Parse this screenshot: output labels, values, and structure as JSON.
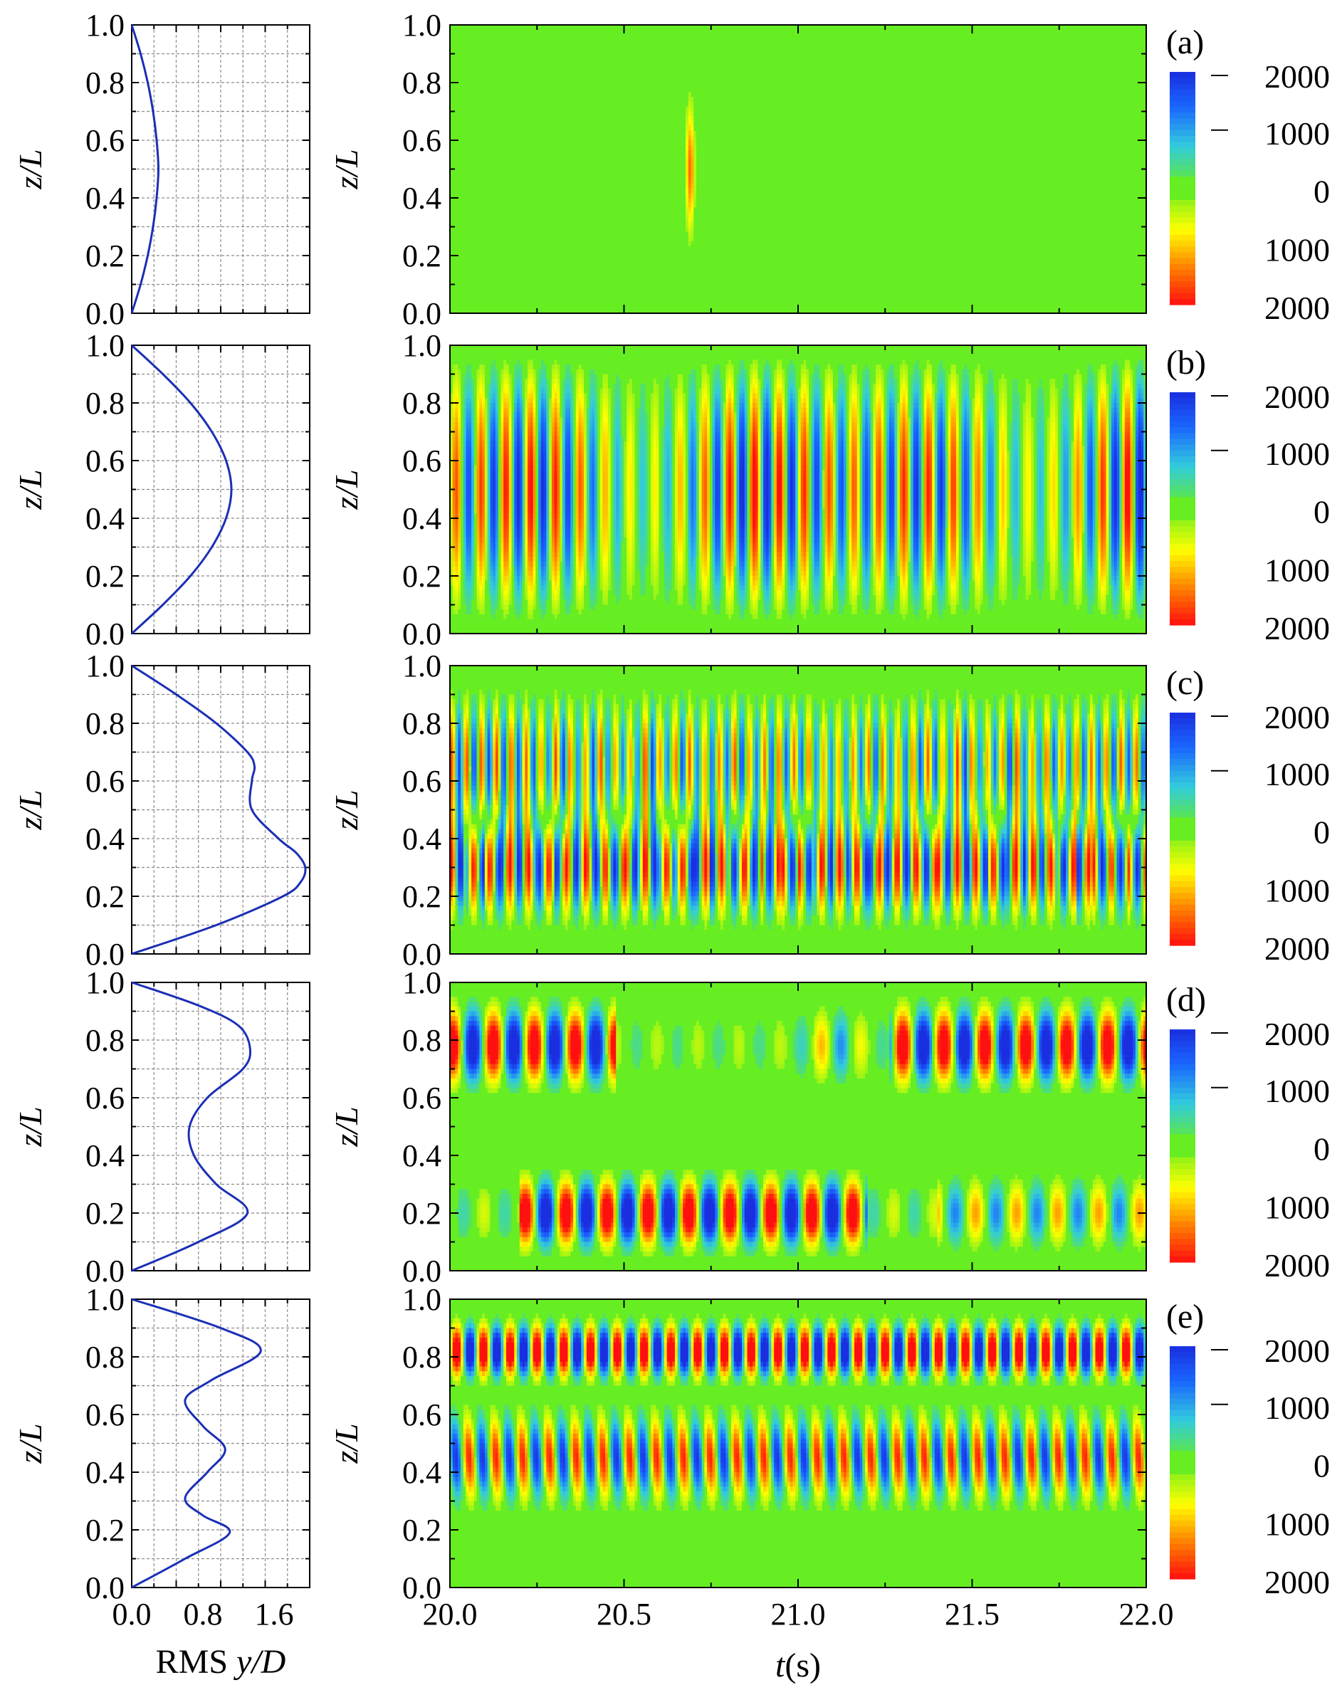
{
  "figure": {
    "rms_xlabel_main": "RMS ",
    "rms_xlabel_var": "y/D",
    "t_xlabel_var": "t",
    "t_xlabel_unit": "(s)",
    "ylabel_var": "z/L",
    "colorbar_ticks": [
      "2000",
      "1000",
      "0",
      "1000",
      "2000"
    ]
  },
  "colors": {
    "curve": "#1b2fb5",
    "grid": "#8a8a8a",
    "colormap": [
      "#ff1010",
      "#ff7a00",
      "#ffff00",
      "#66ee22",
      "#33ccdd",
      "#1a66ff",
      "#1a2fe0"
    ]
  },
  "chart_data": [
    {
      "label": "(a)",
      "type": "line",
      "xlabel": "RMS y/D",
      "ylabel": "z/L",
      "xlim": [
        0,
        2.0
      ],
      "ylim": [
        0,
        1.0
      ],
      "x_ticks": [
        "0.0",
        "0.8",
        "1.6"
      ],
      "y_ticks": [
        "0.0",
        "0.2",
        "0.4",
        "0.6",
        "0.8",
        "1.0"
      ],
      "grid": true,
      "rms_profile": {
        "z": [
          0,
          0.1,
          0.2,
          0.3,
          0.4,
          0.5,
          0.6,
          0.7,
          0.8,
          0.9,
          1.0
        ],
        "rms": [
          0,
          0.1,
          0.18,
          0.24,
          0.28,
          0.3,
          0.28,
          0.24,
          0.18,
          0.1,
          0
        ]
      },
      "heatmap": {
        "type": "heatmap",
        "xlabel": "t(s)",
        "ylabel": "z/L",
        "xlim": [
          20.0,
          22.0
        ],
        "ylim": [
          0,
          1.0
        ],
        "x_ticks": [
          "20.0",
          "20.5",
          "21.0",
          "21.5",
          "22.0"
        ],
        "y_ticks": [
          "0.0",
          "0.2",
          "0.4",
          "0.6",
          "0.8",
          "1.0"
        ],
        "colorbar_ticks": [
          "2000",
          "1000",
          "0",
          "1000",
          "2000"
        ],
        "pattern": {
          "mode": "single",
          "t_center": 20.69,
          "z_center": 0.5,
          "amplitude": 1400
        }
      }
    },
    {
      "label": "(b)",
      "type": "line",
      "xlabel": "RMS y/D",
      "ylabel": "z/L",
      "xlim": [
        0,
        2.0
      ],
      "ylim": [
        0,
        1.0
      ],
      "x_ticks": [
        "0.0",
        "0.8",
        "1.6"
      ],
      "y_ticks": [
        "0.0",
        "0.2",
        "0.4",
        "0.6",
        "0.8",
        "1.0"
      ],
      "grid": true,
      "rms_profile": {
        "z": [
          0,
          0.1,
          0.2,
          0.3,
          0.4,
          0.5,
          0.6,
          0.7,
          0.8,
          0.9,
          1.0
        ],
        "rms": [
          0,
          0.35,
          0.66,
          0.9,
          1.06,
          1.12,
          1.06,
          0.9,
          0.66,
          0.35,
          0
        ]
      },
      "heatmap": {
        "type": "heatmap",
        "xlabel": "t(s)",
        "ylabel": "z/L",
        "xlim": [
          20.0,
          22.0
        ],
        "ylim": [
          0,
          1.0
        ],
        "x_ticks": [
          "20.0",
          "20.5",
          "21.0",
          "21.5",
          "22.0"
        ],
        "y_ticks": [
          "0.0",
          "0.2",
          "0.4",
          "0.6",
          "0.8",
          "1.0"
        ],
        "colorbar_ticks": [
          "2000",
          "1000",
          "0",
          "1000",
          "2000"
        ],
        "pattern": {
          "mode": "mode1",
          "frequency_hz": 14,
          "amplitude": 2200
        }
      }
    },
    {
      "label": "(c)",
      "type": "line",
      "xlabel": "RMS y/D",
      "ylabel": "z/L",
      "xlim": [
        0,
        2.0
      ],
      "ylim": [
        0,
        1.0
      ],
      "x_ticks": [
        "0.0",
        "0.8",
        "1.6"
      ],
      "y_ticks": [
        "0.0",
        "0.2",
        "0.4",
        "0.6",
        "0.8",
        "1.0"
      ],
      "grid": true,
      "rms_profile": {
        "z": [
          0,
          0.1,
          0.2,
          0.25,
          0.3,
          0.35,
          0.4,
          0.5,
          0.6,
          0.65,
          0.7,
          0.8,
          0.9,
          1.0
        ],
        "rms": [
          0,
          0.95,
          1.7,
          1.9,
          1.95,
          1.85,
          1.65,
          1.35,
          1.35,
          1.38,
          1.3,
          0.95,
          0.5,
          0
        ]
      },
      "heatmap": {
        "type": "heatmap",
        "xlabel": "t(s)",
        "ylabel": "z/L",
        "xlim": [
          20.0,
          22.0
        ],
        "ylim": [
          0,
          1.0
        ],
        "x_ticks": [
          "20.0",
          "20.5",
          "21.0",
          "21.5",
          "22.0"
        ],
        "y_ticks": [
          "0.0",
          "0.2",
          "0.4",
          "0.6",
          "0.8",
          "1.0"
        ],
        "colorbar_ticks": [
          "2000",
          "1000",
          "0",
          "1000",
          "2000"
        ],
        "pattern": {
          "mode": "mixed",
          "frequency_hz": 18,
          "amplitude": 2400
        }
      }
    },
    {
      "label": "(d)",
      "type": "line",
      "xlabel": "RMS y/D",
      "ylabel": "z/L",
      "xlim": [
        0,
        2.0
      ],
      "ylim": [
        0,
        1.0
      ],
      "x_ticks": [
        "0.0",
        "0.8",
        "1.6"
      ],
      "y_ticks": [
        "0.0",
        "0.2",
        "0.4",
        "0.6",
        "0.8",
        "1.0"
      ],
      "grid": true,
      "rms_profile": {
        "z": [
          0,
          0.1,
          0.2,
          0.3,
          0.4,
          0.5,
          0.6,
          0.7,
          0.77,
          0.85,
          0.92,
          1.0
        ],
        "rms": [
          0,
          0.75,
          1.3,
          0.95,
          0.7,
          0.65,
          0.85,
          1.25,
          1.33,
          1.2,
          0.75,
          0
        ]
      },
      "heatmap": {
        "type": "heatmap",
        "xlabel": "t(s)",
        "ylabel": "z/L",
        "xlim": [
          20.0,
          22.0
        ],
        "ylim": [
          0,
          1.0
        ],
        "x_ticks": [
          "20.0",
          "20.5",
          "21.0",
          "21.5",
          "22.0"
        ],
        "y_ticks": [
          "0.0",
          "0.2",
          "0.4",
          "0.6",
          "0.8",
          "1.0"
        ],
        "colorbar_ticks": [
          "2000",
          "1000",
          "0",
          "1000",
          "2000"
        ],
        "pattern": {
          "mode": "mode3",
          "frequency_hz": 8.5,
          "amplitude": 2500
        }
      }
    },
    {
      "label": "(e)",
      "type": "line",
      "xlabel": "RMS y/D",
      "ylabel": "z/L",
      "xlim": [
        0,
        2.0
      ],
      "ylim": [
        0,
        1.0
      ],
      "x_ticks": [
        "0.0",
        "0.8",
        "1.6"
      ],
      "y_ticks": [
        "0.0",
        "0.2",
        "0.4",
        "0.6",
        "0.8",
        "1.0"
      ],
      "grid": true,
      "rms_profile": {
        "z": [
          0,
          0.1,
          0.19,
          0.25,
          0.31,
          0.4,
          0.48,
          0.56,
          0.65,
          0.72,
          0.82,
          0.9,
          1.0
        ],
        "rms": [
          0,
          0.6,
          1.1,
          0.8,
          0.6,
          0.85,
          1.05,
          0.8,
          0.6,
          0.9,
          1.45,
          1.0,
          0
        ]
      },
      "heatmap": {
        "type": "heatmap",
        "xlabel": "t(s)",
        "ylabel": "z/L",
        "xlim": [
          20.0,
          22.0
        ],
        "ylim": [
          0,
          1.0
        ],
        "x_ticks": [
          "20.0",
          "20.5",
          "21.0",
          "21.5",
          "22.0"
        ],
        "y_ticks": [
          "0.0",
          "0.2",
          "0.4",
          "0.6",
          "0.8",
          "1.0"
        ],
        "colorbar_ticks": [
          "2000",
          "1000",
          "0",
          "1000",
          "2000"
        ],
        "pattern": {
          "mode": "mode5",
          "frequency_hz": 13,
          "amplitude": 2400
        }
      }
    }
  ]
}
